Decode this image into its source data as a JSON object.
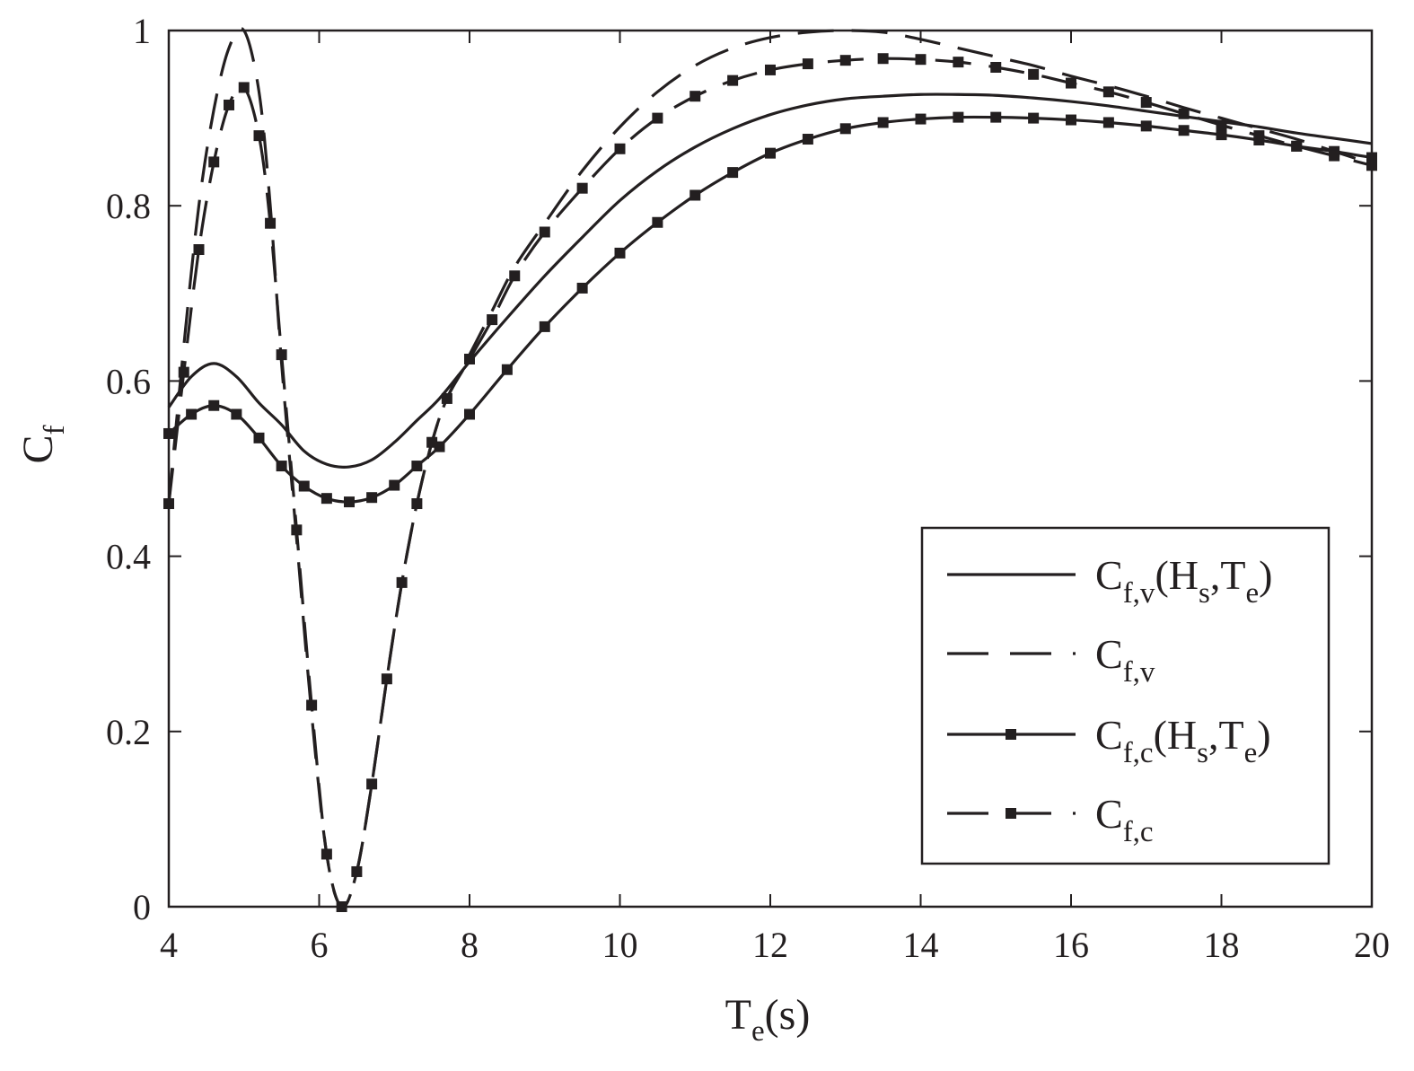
{
  "chart_data": {
    "type": "line",
    "xlabel": {
      "main": "T",
      "sub": "e",
      "rest": "(s)"
    },
    "ylabel": {
      "main": "C",
      "sub": "f"
    },
    "xlim": [
      4,
      20
    ],
    "ylim": [
      0,
      1
    ],
    "xticks": [
      4,
      6,
      8,
      10,
      12,
      14,
      16,
      18,
      20
    ],
    "yticks": [
      0,
      0.2,
      0.4,
      0.6,
      0.8,
      1
    ],
    "xtick_labels": [
      "4",
      "6",
      "8",
      "10",
      "12",
      "14",
      "16",
      "18",
      "20"
    ],
    "ytick_labels": [
      "0",
      "0.2",
      "0.4",
      "0.6",
      "0.8",
      "1"
    ],
    "grid": false,
    "legend_position": "bottom-right",
    "line_color": "#231f20",
    "series": [
      {
        "name": "C_{f,v}(H_s,T_e)",
        "label_parts": [
          [
            "C",
            ""
          ],
          [
            "f,v",
            "sub"
          ],
          [
            "(H",
            ""
          ],
          [
            "s",
            "sub"
          ],
          [
            ",T",
            ""
          ],
          [
            "e",
            "sub"
          ],
          [
            ")",
            ""
          ]
        ],
        "style": "solid",
        "marker": "none",
        "x": [
          4.0,
          4.3,
          4.6,
          4.9,
          5.2,
          5.5,
          5.8,
          6.1,
          6.4,
          6.7,
          7.0,
          7.3,
          7.6,
          8.0,
          8.5,
          9.0,
          9.5,
          10.0,
          10.5,
          11.0,
          11.5,
          12.0,
          12.5,
          13.0,
          13.5,
          14.0,
          14.5,
          15.0,
          15.5,
          16.0,
          16.5,
          17.0,
          17.5,
          18.0,
          18.5,
          19.0,
          19.5,
          20.0
        ],
        "y": [
          0.57,
          0.605,
          0.62,
          0.605,
          0.575,
          0.55,
          0.52,
          0.505,
          0.502,
          0.51,
          0.53,
          0.555,
          0.58,
          0.622,
          0.672,
          0.72,
          0.764,
          0.806,
          0.84,
          0.867,
          0.888,
          0.904,
          0.915,
          0.922,
          0.925,
          0.927,
          0.927,
          0.926,
          0.923,
          0.919,
          0.914,
          0.908,
          0.902,
          0.896,
          0.89,
          0.883,
          0.877,
          0.871
        ]
      },
      {
        "name": "C_{f,v}",
        "label_parts": [
          [
            "C",
            ""
          ],
          [
            "f,v",
            "sub"
          ]
        ],
        "style": "dashed",
        "marker": "none",
        "x": [
          4.0,
          4.2,
          4.4,
          4.6,
          4.8,
          5.0,
          5.2,
          5.35,
          5.5,
          5.7,
          5.9,
          6.1,
          6.3,
          6.5,
          6.7,
          6.9,
          7.1,
          7.3,
          7.5,
          7.7,
          8.0,
          8.3,
          8.6,
          9.0,
          9.5,
          10.0,
          10.5,
          11.0,
          11.5,
          12.0,
          12.5,
          13.0,
          13.5,
          14.0,
          14.5,
          15.0,
          15.5,
          16.0,
          16.5,
          17.0,
          17.5,
          18.0,
          18.5,
          19.0,
          19.5,
          20.0
        ],
        "y": [
          0.46,
          0.64,
          0.8,
          0.91,
          0.98,
          1.0,
          0.93,
          0.8,
          0.62,
          0.42,
          0.22,
          0.06,
          0.0,
          0.04,
          0.14,
          0.26,
          0.37,
          0.46,
          0.53,
          0.58,
          0.63,
          0.68,
          0.73,
          0.78,
          0.84,
          0.89,
          0.93,
          0.96,
          0.98,
          0.992,
          0.998,
          1.0,
          0.998,
          0.99,
          0.98,
          0.97,
          0.96,
          0.948,
          0.937,
          0.925,
          0.912,
          0.9,
          0.888,
          0.876,
          0.862,
          0.848
        ]
      },
      {
        "name": "C_{f,c}(H_s,T_e)",
        "label_parts": [
          [
            "C",
            ""
          ],
          [
            "f,c",
            "sub"
          ],
          [
            "(H",
            ""
          ],
          [
            "s",
            "sub"
          ],
          [
            ",T",
            ""
          ],
          [
            "e",
            "sub"
          ],
          [
            ")",
            ""
          ]
        ],
        "style": "solid",
        "marker": "square",
        "x": [
          4.0,
          4.3,
          4.6,
          4.9,
          5.2,
          5.5,
          5.8,
          6.1,
          6.4,
          6.7,
          7.0,
          7.3,
          7.6,
          8.0,
          8.5,
          9.0,
          9.5,
          10.0,
          10.5,
          11.0,
          11.5,
          12.0,
          12.5,
          13.0,
          13.5,
          14.0,
          14.5,
          15.0,
          15.5,
          16.0,
          16.5,
          17.0,
          17.5,
          18.0,
          18.5,
          19.0,
          19.5,
          20.0
        ],
        "y": [
          0.54,
          0.562,
          0.572,
          0.562,
          0.535,
          0.503,
          0.48,
          0.466,
          0.462,
          0.467,
          0.481,
          0.503,
          0.525,
          0.562,
          0.613,
          0.662,
          0.706,
          0.746,
          0.781,
          0.812,
          0.838,
          0.86,
          0.876,
          0.888,
          0.895,
          0.899,
          0.901,
          0.901,
          0.9,
          0.898,
          0.895,
          0.891,
          0.886,
          0.881,
          0.875,
          0.868,
          0.862,
          0.855
        ]
      },
      {
        "name": "C_{f,c}",
        "label_parts": [
          [
            "C",
            ""
          ],
          [
            "f,c",
            "sub"
          ]
        ],
        "style": "dashed",
        "marker": "square",
        "x": [
          4.0,
          4.2,
          4.4,
          4.6,
          4.8,
          5.0,
          5.2,
          5.35,
          5.5,
          5.7,
          5.9,
          6.1,
          6.3,
          6.5,
          6.7,
          6.9,
          7.1,
          7.3,
          7.5,
          7.7,
          8.0,
          8.3,
          8.6,
          9.0,
          9.5,
          10.0,
          10.5,
          11.0,
          11.5,
          12.0,
          12.5,
          13.0,
          13.5,
          14.0,
          14.5,
          15.0,
          15.5,
          16.0,
          16.5,
          17.0,
          17.5,
          18.0,
          18.5,
          19.0,
          19.5,
          20.0
        ],
        "y": [
          0.46,
          0.61,
          0.75,
          0.85,
          0.915,
          0.935,
          0.88,
          0.78,
          0.63,
          0.43,
          0.23,
          0.06,
          0.0,
          0.04,
          0.14,
          0.26,
          0.37,
          0.46,
          0.53,
          0.58,
          0.625,
          0.67,
          0.72,
          0.77,
          0.82,
          0.865,
          0.9,
          0.925,
          0.943,
          0.955,
          0.962,
          0.966,
          0.968,
          0.967,
          0.964,
          0.958,
          0.95,
          0.94,
          0.93,
          0.918,
          0.905,
          0.892,
          0.88,
          0.868,
          0.857,
          0.846
        ]
      }
    ]
  }
}
